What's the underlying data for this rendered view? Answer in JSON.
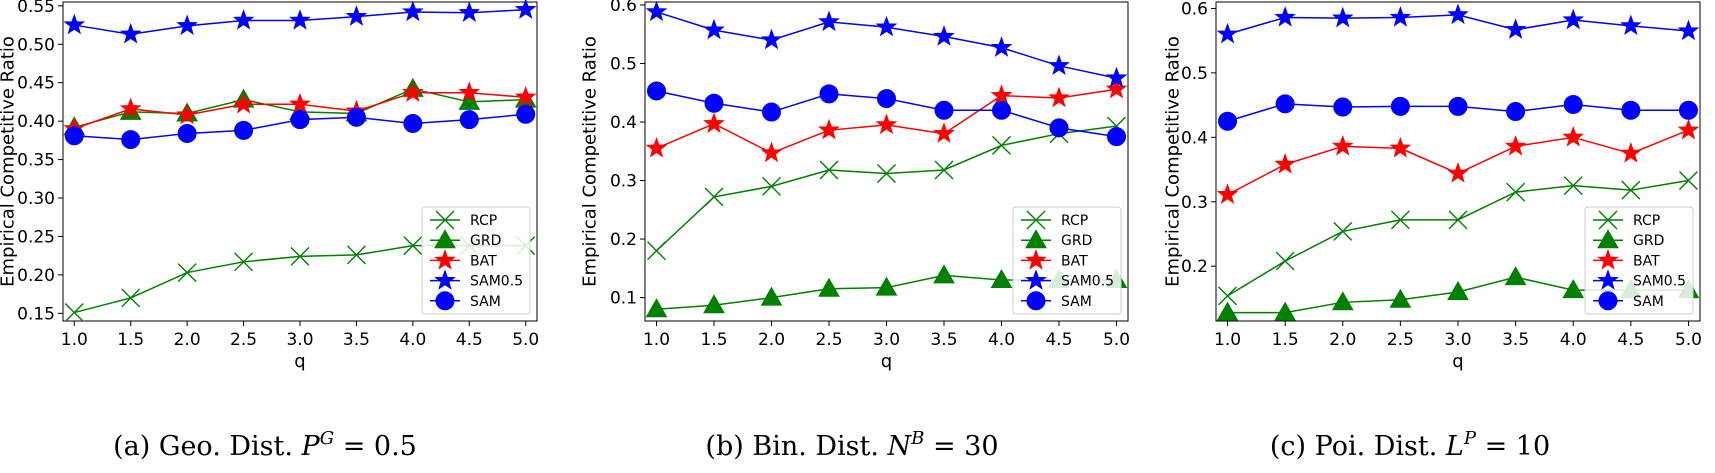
{
  "chart_data": [
    {
      "type": "line",
      "caption_prefix": "(a) Geo. Dist. ",
      "caption_var": "P",
      "caption_sup": "G",
      "caption_value": " = 0.5",
      "xlabel": "q",
      "ylabel": "Empirical Competitive Ratio",
      "x": [
        1.0,
        1.5,
        2.0,
        2.5,
        3.0,
        3.5,
        4.0,
        4.5,
        5.0
      ],
      "xticks": [
        "1.0",
        "1.5",
        "2.0",
        "2.5",
        "3.0",
        "3.5",
        "4.0",
        "4.5",
        "5.0"
      ],
      "ylim": [
        0.14,
        0.555
      ],
      "yticks": [
        0.15,
        0.2,
        0.25,
        0.3,
        0.35,
        0.4,
        0.45,
        0.5,
        0.55
      ],
      "ytick_labels": [
        "0.15",
        "0.20",
        "0.25",
        "0.30",
        "0.35",
        "0.40",
        "0.45",
        "0.50",
        "0.55"
      ],
      "grid": false,
      "legend": "bottom-right",
      "series": [
        {
          "name": "RCP",
          "color": "#008000",
          "marker": "x",
          "values": [
            0.151,
            0.17,
            0.203,
            0.217,
            0.224,
            0.226,
            0.238,
            0.238,
            0.238
          ]
        },
        {
          "name": "GRD",
          "color": "#008000",
          "marker": "triangle",
          "values": [
            0.392,
            0.412,
            0.41,
            0.428,
            0.412,
            0.41,
            0.442,
            0.425,
            0.428
          ]
        },
        {
          "name": "BAT",
          "color": "#ff0000",
          "marker": "star",
          "values": [
            0.39,
            0.416,
            0.408,
            0.422,
            0.422,
            0.413,
            0.437,
            0.437,
            0.431
          ]
        },
        {
          "name": "SAM0.5",
          "color": "#0000ff",
          "marker": "star",
          "values": [
            0.525,
            0.513,
            0.524,
            0.531,
            0.531,
            0.536,
            0.542,
            0.541,
            0.545
          ]
        },
        {
          "name": "SAM",
          "color": "#0000ff",
          "marker": "circle",
          "values": [
            0.381,
            0.376,
            0.384,
            0.388,
            0.402,
            0.405,
            0.397,
            0.402,
            0.409
          ]
        }
      ]
    },
    {
      "type": "line",
      "caption_prefix": "(b) Bin. Dist. ",
      "caption_var": "N",
      "caption_sup": "B",
      "caption_value": " = 30",
      "xlabel": "q",
      "ylabel": "Empirical Competitive Ratio",
      "x": [
        1.0,
        1.5,
        2.0,
        2.5,
        3.0,
        3.5,
        4.0,
        4.5,
        5.0
      ],
      "xticks": [
        "1.0",
        "1.5",
        "2.0",
        "2.5",
        "3.0",
        "3.5",
        "4.0",
        "4.5",
        "5.0"
      ],
      "ylim": [
        0.06,
        0.605
      ],
      "yticks": [
        0.1,
        0.2,
        0.3,
        0.4,
        0.5,
        0.6
      ],
      "ytick_labels": [
        "0.1",
        "0.2",
        "0.3",
        "0.4",
        "0.5",
        "0.6"
      ],
      "grid": false,
      "legend": "bottom-right",
      "series": [
        {
          "name": "RCP",
          "color": "#008000",
          "marker": "x",
          "values": [
            0.18,
            0.272,
            0.29,
            0.318,
            0.312,
            0.318,
            0.36,
            0.38,
            0.393
          ]
        },
        {
          "name": "GRD",
          "color": "#008000",
          "marker": "triangle",
          "values": [
            0.08,
            0.087,
            0.1,
            0.115,
            0.117,
            0.138,
            0.13,
            0.13,
            0.13
          ]
        },
        {
          "name": "BAT",
          "color": "#ff0000",
          "marker": "star",
          "values": [
            0.355,
            0.397,
            0.347,
            0.386,
            0.395,
            0.38,
            0.445,
            0.441,
            0.456
          ]
        },
        {
          "name": "SAM0.5",
          "color": "#0000ff",
          "marker": "star",
          "values": [
            0.588,
            0.557,
            0.54,
            0.571,
            0.562,
            0.546,
            0.527,
            0.496,
            0.475
          ]
        },
        {
          "name": "SAM",
          "color": "#0000ff",
          "marker": "circle",
          "values": [
            0.453,
            0.432,
            0.417,
            0.448,
            0.44,
            0.42,
            0.42,
            0.39,
            0.375
          ]
        }
      ]
    },
    {
      "type": "line",
      "caption_prefix": "(c) Poi. Dist. ",
      "caption_var": "L",
      "caption_sup": "P",
      "caption_value": " = 10",
      "xlabel": "q",
      "ylabel": "Empirical Competitive Ratio",
      "x": [
        1.0,
        1.5,
        2.0,
        2.5,
        3.0,
        3.5,
        4.0,
        4.5,
        5.0
      ],
      "xticks": [
        "1.0",
        "1.5",
        "2.0",
        "2.5",
        "3.0",
        "3.5",
        "4.0",
        "4.5",
        "5.0"
      ],
      "ylim": [
        0.115,
        0.61
      ],
      "yticks": [
        0.2,
        0.3,
        0.4,
        0.5,
        0.6
      ],
      "ytick_labels": [
        "0.2",
        "0.3",
        "0.4",
        "0.5",
        "0.6"
      ],
      "grid": false,
      "legend": "bottom-right",
      "series": [
        {
          "name": "RCP",
          "color": "#008000",
          "marker": "x",
          "values": [
            0.154,
            0.208,
            0.254,
            0.272,
            0.272,
            0.315,
            0.325,
            0.318,
            0.333
          ]
        },
        {
          "name": "GRD",
          "color": "#008000",
          "marker": "triangle",
          "values": [
            0.128,
            0.128,
            0.144,
            0.148,
            0.16,
            0.183,
            0.163,
            0.163,
            0.163
          ]
        },
        {
          "name": "BAT",
          "color": "#ff0000",
          "marker": "star",
          "values": [
            0.311,
            0.358,
            0.386,
            0.383,
            0.344,
            0.386,
            0.4,
            0.375,
            0.411
          ]
        },
        {
          "name": "SAM0.5",
          "color": "#0000ff",
          "marker": "star",
          "values": [
            0.56,
            0.586,
            0.585,
            0.586,
            0.59,
            0.567,
            0.582,
            0.573,
            0.565
          ]
        },
        {
          "name": "SAM",
          "color": "#0000ff",
          "marker": "circle",
          "values": [
            0.425,
            0.452,
            0.447,
            0.448,
            0.448,
            0.44,
            0.451,
            0.442,
            0.442
          ]
        }
      ]
    }
  ]
}
